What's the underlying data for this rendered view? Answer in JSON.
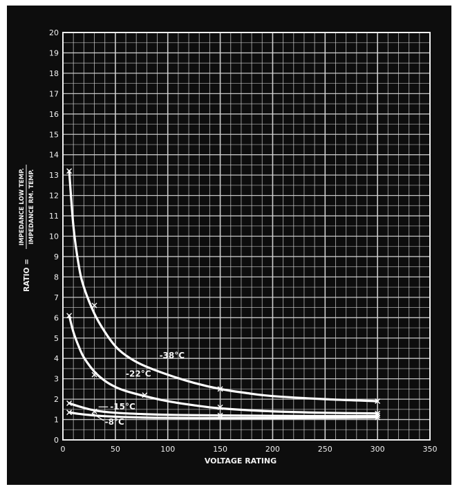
{
  "chart_data": {
    "type": "line",
    "xlabel": "VOLTAGE RATING",
    "ylabel": {
      "prefix": "RATIO =",
      "numerator": "IMPEDANCE LOW TEMP.",
      "denominator": "IMPEDANCE RM. TEMP."
    },
    "xlim": [
      0,
      350
    ],
    "ylim": [
      0,
      20
    ],
    "x_ticks": [
      "0",
      "50",
      "100",
      "150",
      "200",
      "250",
      "300",
      "350"
    ],
    "y_ticks": [
      "0",
      "1",
      "2",
      "3",
      "4",
      "5",
      "6",
      "7",
      "8",
      "9",
      "10",
      "11",
      "12",
      "13",
      "14",
      "15",
      "16",
      "17",
      "18",
      "19",
      "20"
    ],
    "grid": true,
    "colors": {
      "background": "#0d0d0d",
      "grid": "#d9d9d9",
      "curve": "#ffffff",
      "text": "#f2f2f2"
    },
    "series": [
      {
        "name": "-38°C",
        "points": [
          [
            6,
            13.2
          ],
          [
            30,
            6.6
          ],
          [
            150,
            2.5
          ],
          [
            300,
            1.9
          ]
        ],
        "curve": [
          [
            6,
            13.2
          ],
          [
            10,
            10.5
          ],
          [
            15,
            8.6
          ],
          [
            20,
            7.5
          ],
          [
            30,
            6.2
          ],
          [
            40,
            5.3
          ],
          [
            50,
            4.6
          ],
          [
            60,
            4.15
          ],
          [
            75,
            3.7
          ],
          [
            100,
            3.2
          ],
          [
            125,
            2.8
          ],
          [
            150,
            2.5
          ],
          [
            175,
            2.3
          ],
          [
            200,
            2.15
          ],
          [
            250,
            2.0
          ],
          [
            300,
            1.9
          ]
        ]
      },
      {
        "name": "-22°C",
        "points": [
          [
            6,
            6.1
          ],
          [
            30,
            3.2
          ],
          [
            78,
            2.2
          ],
          [
            150,
            1.6
          ],
          [
            300,
            1.3
          ]
        ],
        "curve": [
          [
            6,
            6.1
          ],
          [
            10,
            5.3
          ],
          [
            15,
            4.6
          ],
          [
            20,
            4.05
          ],
          [
            30,
            3.35
          ],
          [
            40,
            2.9
          ],
          [
            50,
            2.6
          ],
          [
            60,
            2.4
          ],
          [
            78,
            2.15
          ],
          [
            100,
            1.9
          ],
          [
            125,
            1.7
          ],
          [
            150,
            1.55
          ],
          [
            200,
            1.4
          ],
          [
            250,
            1.33
          ],
          [
            300,
            1.3
          ]
        ]
      },
      {
        "name": "-15°C",
        "points": [
          [
            6,
            1.8
          ],
          [
            30,
            1.4
          ],
          [
            150,
            1.2
          ],
          [
            300,
            1.2
          ]
        ],
        "curve": [
          [
            6,
            1.8
          ],
          [
            15,
            1.65
          ],
          [
            30,
            1.45
          ],
          [
            50,
            1.33
          ],
          [
            75,
            1.27
          ],
          [
            100,
            1.23
          ],
          [
            150,
            1.2
          ],
          [
            200,
            1.18
          ],
          [
            250,
            1.17
          ],
          [
            300,
            1.17
          ]
        ]
      },
      {
        "name": "-8°C",
        "points": [
          [
            6,
            1.35
          ],
          [
            300,
            1.1
          ]
        ],
        "curve": [
          [
            6,
            1.35
          ],
          [
            15,
            1.28
          ],
          [
            30,
            1.2
          ],
          [
            50,
            1.14
          ],
          [
            75,
            1.1
          ],
          [
            100,
            1.08
          ],
          [
            150,
            1.07
          ],
          [
            200,
            1.07
          ],
          [
            250,
            1.08
          ],
          [
            300,
            1.1
          ]
        ]
      }
    ]
  }
}
